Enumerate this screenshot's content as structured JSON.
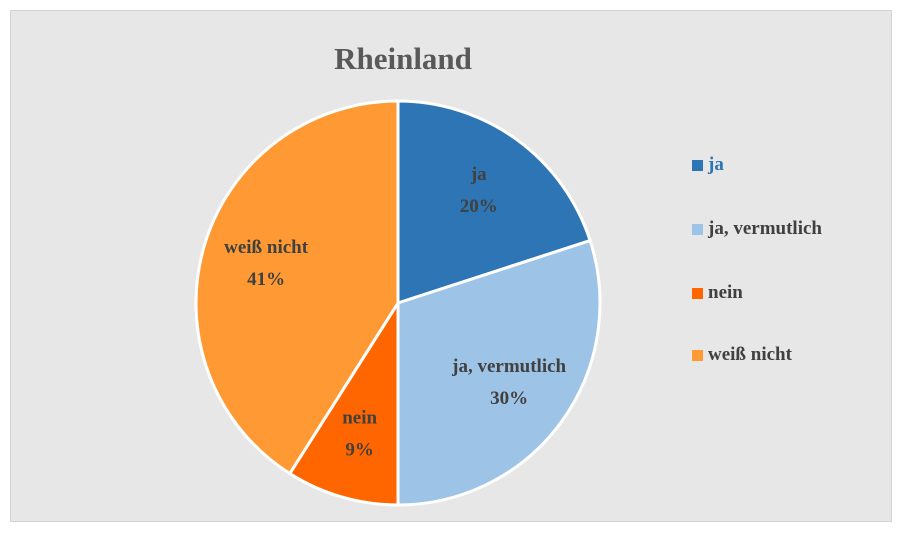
{
  "chart_data": {
    "type": "pie",
    "title": "Rheinland",
    "categories": [
      "ja",
      "ja, vermutlich",
      "nein",
      "weiß nicht"
    ],
    "values": [
      20,
      30,
      9,
      41
    ],
    "value_labels": [
      "20%",
      "30%",
      "9%",
      "41%"
    ],
    "colors": [
      "#2e75b6",
      "#9dc3e6",
      "#ff6600",
      "#ff9933"
    ],
    "legend": "right"
  }
}
